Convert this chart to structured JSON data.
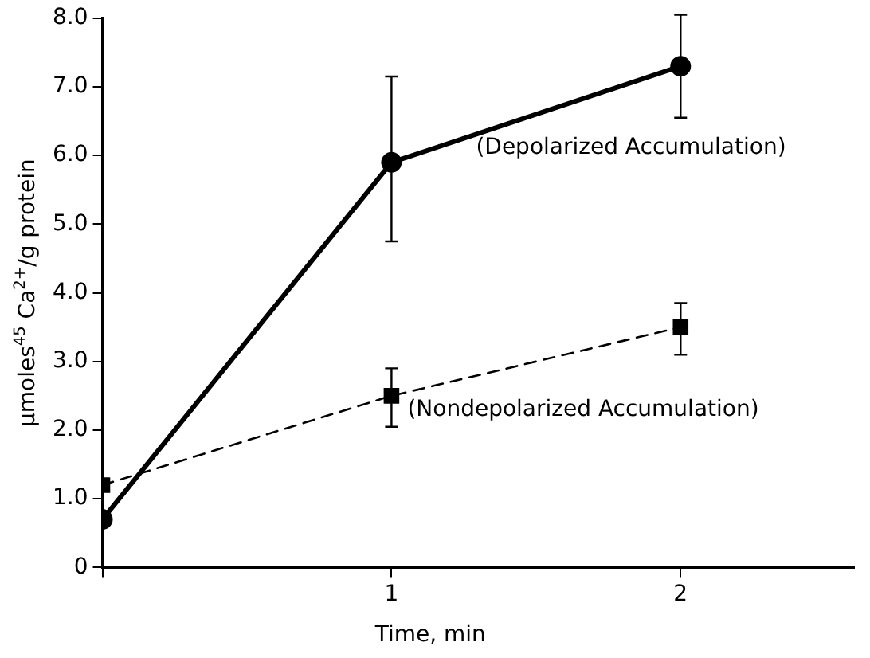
{
  "chart_data": {
    "type": "line",
    "xlabel": "Time, min",
    "ylabel": "μmoles$^{45}$ Ca$^{2+}$/g protein",
    "x": [
      0,
      1,
      2
    ],
    "xlim": [
      0,
      2.6
    ],
    "xticks": [
      {
        "value": 0,
        "label": null
      },
      1,
      2
    ],
    "ylim": [
      0,
      8
    ],
    "yticks": [
      0,
      {
        "value": 1,
        "label": "1.0"
      },
      {
        "value": 2,
        "label": "2.0"
      },
      {
        "value": 3,
        "label": "3.0"
      },
      {
        "value": 4,
        "label": "4.0"
      },
      {
        "value": 5,
        "label": "5.0"
      },
      {
        "value": 6,
        "label": "6.0"
      },
      {
        "value": 7,
        "label": "7.0"
      },
      {
        "value": 8,
        "label": "8.0"
      }
    ],
    "grid": false,
    "legend": false,
    "series": [
      {
        "name": "(Depolarized Accumulation)",
        "color": "#000000",
        "values": [
          0.7,
          5.9,
          7.3
        ],
        "errors": [
          null,
          [
            4.75,
            7.15
          ],
          [
            6.55,
            8.05
          ]
        ],
        "marker": "circle",
        "line_style": "solid"
      },
      {
        "name": "(Nondepolarized Accumulation)",
        "color": "#000000",
        "values": [
          1.2,
          2.5,
          3.5
        ],
        "errors": [
          null,
          [
            2.05,
            2.9
          ],
          [
            3.1,
            3.85
          ]
        ],
        "marker": "square",
        "line_style": "dashed"
      }
    ]
  }
}
